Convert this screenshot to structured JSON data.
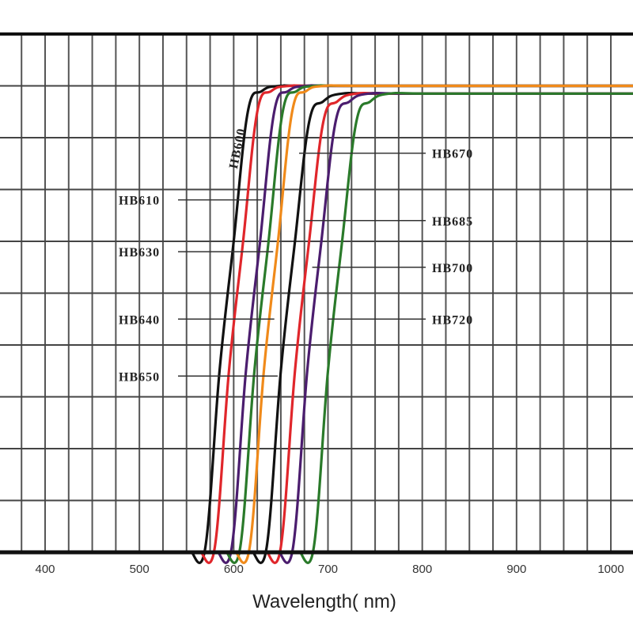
{
  "chart_data": {
    "type": "line",
    "title": "",
    "xlabel": "Wavelength( nm)",
    "ylabel": "",
    "xlim": [
      355,
      1030
    ],
    "ylim": [
      0,
      100
    ],
    "x_ticks": [
      400,
      500,
      600,
      700,
      800,
      900,
      1000
    ],
    "x_tick_labels": [
      "400",
      "500",
      "600",
      "700",
      "800",
      "900",
      "1000"
    ],
    "x_minor_step": 25,
    "y_grid_step": 10,
    "grid": true,
    "legend": "none",
    "plateau": 90,
    "series": [
      {
        "name": "HB600",
        "color": "#111111",
        "cut_on": 600,
        "x": [
          555,
          570,
          585,
          600,
          615,
          630,
          650,
          700,
          1030
        ],
        "y": [
          0,
          1,
          35,
          60,
          85,
          89,
          90,
          90,
          90
        ]
      },
      {
        "name": "HB610",
        "color": "#e0262b",
        "cut_on": 610,
        "x": [
          565,
          580,
          595,
          610,
          625,
          640,
          660,
          710,
          1030
        ],
        "y": [
          0,
          1,
          35,
          60,
          85,
          89,
          90,
          90,
          90
        ]
      },
      {
        "name": "HB630",
        "color": "#4b1d6e",
        "cut_on": 630,
        "x": [
          583,
          598,
          613,
          628,
          643,
          658,
          678,
          728,
          1030
        ],
        "y": [
          0,
          1,
          35,
          60,
          85,
          89,
          90,
          90,
          90
        ]
      },
      {
        "name": "HB640",
        "color": "#2a7a2a",
        "cut_on": 640,
        "x": [
          592,
          607,
          622,
          637,
          652,
          667,
          687,
          737,
          1030
        ],
        "y": [
          0,
          1,
          35,
          60,
          85,
          89,
          90,
          90,
          90
        ]
      },
      {
        "name": "HB650",
        "color": "#f08a1a",
        "cut_on": 650,
        "x": [
          602,
          617,
          632,
          647,
          662,
          677,
          697,
          747,
          1030
        ],
        "y": [
          0,
          1,
          35,
          60,
          85,
          89,
          90,
          90,
          90
        ]
      },
      {
        "name": "HB670",
        "color": "#111111",
        "cut_on": 670,
        "x": [
          620,
          635,
          650,
          665,
          680,
          695,
          715,
          765,
          1030
        ],
        "y": [
          0,
          1,
          35,
          60,
          83,
          87,
          88.5,
          88.5,
          88.5
        ]
      },
      {
        "name": "HB685",
        "color": "#e0262b",
        "cut_on": 685,
        "x": [
          635,
          650,
          665,
          680,
          695,
          710,
          730,
          780,
          1030
        ],
        "y": [
          0,
          1,
          35,
          60,
          83,
          87,
          88.5,
          88.5,
          88.5
        ]
      },
      {
        "name": "HB700",
        "color": "#4b1d6e",
        "cut_on": 700,
        "x": [
          648,
          663,
          678,
          693,
          708,
          723,
          743,
          793,
          1030
        ],
        "y": [
          0,
          1,
          35,
          60,
          83,
          87,
          88.5,
          88.5,
          88.5
        ]
      },
      {
        "name": "HB720",
        "color": "#2a7a2a",
        "cut_on": 720,
        "x": [
          670,
          685,
          700,
          715,
          730,
          745,
          765,
          815,
          1030
        ],
        "y": [
          0,
          1,
          35,
          60,
          83,
          87,
          88.5,
          88.5,
          88.5
        ]
      }
    ],
    "annotations": [
      {
        "text": "HB600",
        "series": "HB600",
        "orientation": "vertical",
        "at_y": 80
      },
      {
        "text": "HB610",
        "series": "HB610",
        "side": "left",
        "at_y": 68
      },
      {
        "text": "HB630",
        "series": "HB630",
        "side": "left",
        "at_y": 58
      },
      {
        "text": "HB640",
        "series": "HB640",
        "side": "left",
        "at_y": 45
      },
      {
        "text": "HB650",
        "series": "HB650",
        "side": "left",
        "at_y": 34
      },
      {
        "text": "HB670",
        "series": "HB670",
        "side": "right",
        "at_y": 77
      },
      {
        "text": "HB685",
        "series": "HB685",
        "side": "right",
        "at_y": 64
      },
      {
        "text": "HB700",
        "series": "HB700",
        "side": "right",
        "at_y": 55
      },
      {
        "text": "HB720",
        "series": "HB720",
        "side": "right",
        "at_y": 45
      }
    ]
  }
}
